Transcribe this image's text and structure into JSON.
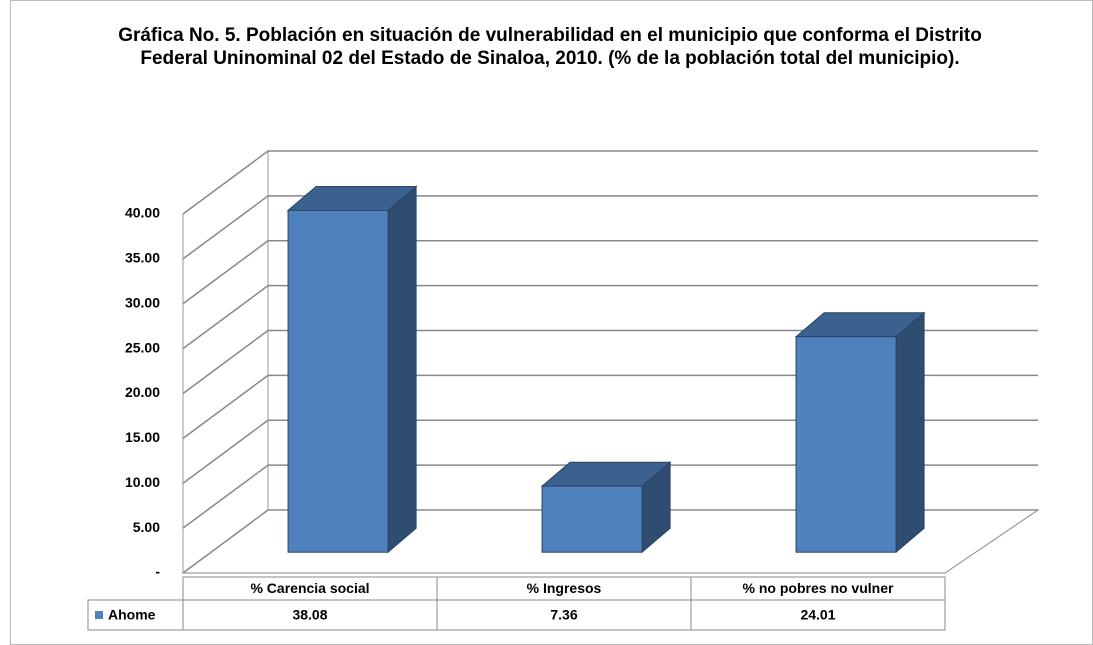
{
  "chart_data": {
    "type": "bar3d",
    "title": "Gráfica No. 5. Población en situación de vulnerabilidad en el municipio que conforma el Distrito Federal Uninominal 02 del Estado de Sinaloa, 2010. (% de la población total del municipio).",
    "categories": [
      "% Carencia social",
      "% Ingresos",
      "% no pobres no vulner"
    ],
    "series": [
      {
        "name": "Ahome",
        "color": "#4f81bd",
        "values": [
          38.08,
          7.36,
          24.01
        ]
      }
    ],
    "ylim": [
      0,
      40
    ],
    "yticks": [
      {
        "value": 0,
        "label": "-"
      },
      {
        "value": 5,
        "label": "5.00"
      },
      {
        "value": 10,
        "label": "10.00"
      },
      {
        "value": 15,
        "label": "15.00"
      },
      {
        "value": 20,
        "label": "20.00"
      },
      {
        "value": 25,
        "label": "25.00"
      },
      {
        "value": 30,
        "label": "30.00"
      },
      {
        "value": 35,
        "label": "35.00"
      },
      {
        "value": 40,
        "label": "40.00"
      }
    ],
    "value_labels": [
      [
        "38.08",
        "7.36",
        "24.01"
      ]
    ],
    "grid": true
  }
}
